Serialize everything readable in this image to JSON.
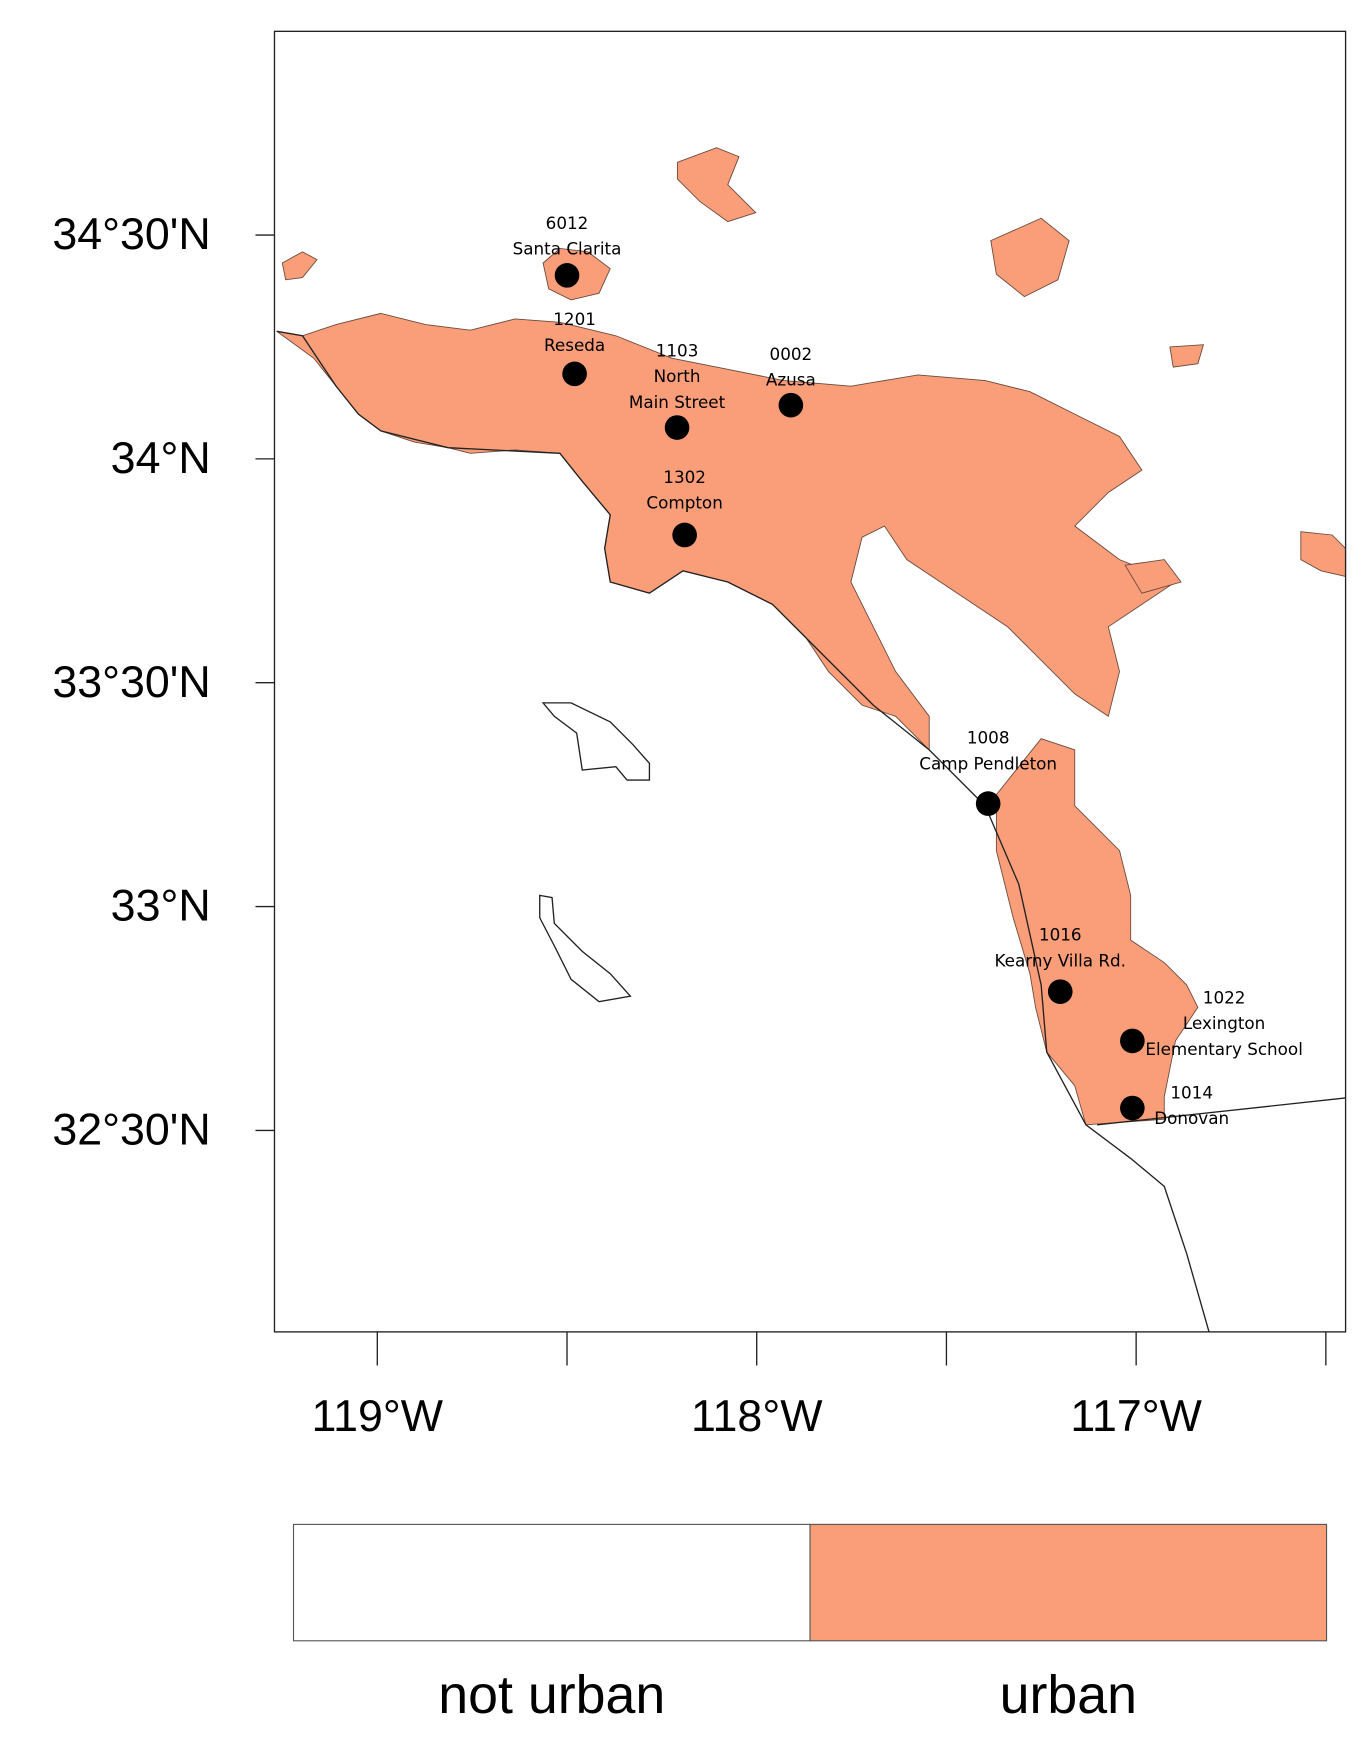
{
  "chart_data": {
    "type": "map",
    "xlim": [
      -119.271,
      -116.448
    ],
    "ylim": [
      32.05,
      34.955
    ],
    "xticks": [
      {
        "value": -119,
        "label": "119°W"
      },
      {
        "value": -118,
        "label": "118°W"
      },
      {
        "value": -117,
        "label": "117°W"
      }
    ],
    "xticks_minor": [
      -118.5,
      -117.5,
      -116.5
    ],
    "yticks": [
      {
        "value": 34.5,
        "label": "34°30'N"
      },
      {
        "value": 34,
        "label": "34°N"
      },
      {
        "value": 33.5,
        "label": "33°30'N"
      },
      {
        "value": 33,
        "label": "33°N"
      },
      {
        "value": 32.5,
        "label": "32°30'N"
      }
    ],
    "stations": [
      {
        "label_lines": [
          "6012",
          "Santa Clarita"
        ],
        "lon": -118.5,
        "lat": 34.41
      },
      {
        "label_lines": [
          "1201",
          "Reseda"
        ],
        "lon": -118.48,
        "lat": 34.19
      },
      {
        "label_lines": [
          "1103",
          "North",
          "Main Street"
        ],
        "lon": -118.21,
        "lat": 34.07
      },
      {
        "label_lines": [
          "0002",
          "Azusa"
        ],
        "lon": -117.91,
        "lat": 34.12
      },
      {
        "label_lines": [
          "1302",
          "Compton"
        ],
        "lon": -118.19,
        "lat": 33.83
      },
      {
        "label_lines": [
          "1008",
          "Camp Pendleton"
        ],
        "lon": -117.39,
        "lat": 33.23
      },
      {
        "label_lines": [
          "1016",
          "Kearny Villa Rd."
        ],
        "lon": -117.2,
        "lat": 32.81
      },
      {
        "label_lines": [
          "1022",
          "Lexington",
          "Elementary School"
        ],
        "lon": -117.01,
        "lat": 32.7
      },
      {
        "label_lines": [
          "1014",
          "Donovan"
        ],
        "lon": -117.01,
        "lat": 32.55
      }
    ],
    "station_color": "#000000",
    "legend": [
      {
        "label": "not urban",
        "color": "#ffffff"
      },
      {
        "label": "urban",
        "color": "#fa9e7a"
      }
    ]
  }
}
